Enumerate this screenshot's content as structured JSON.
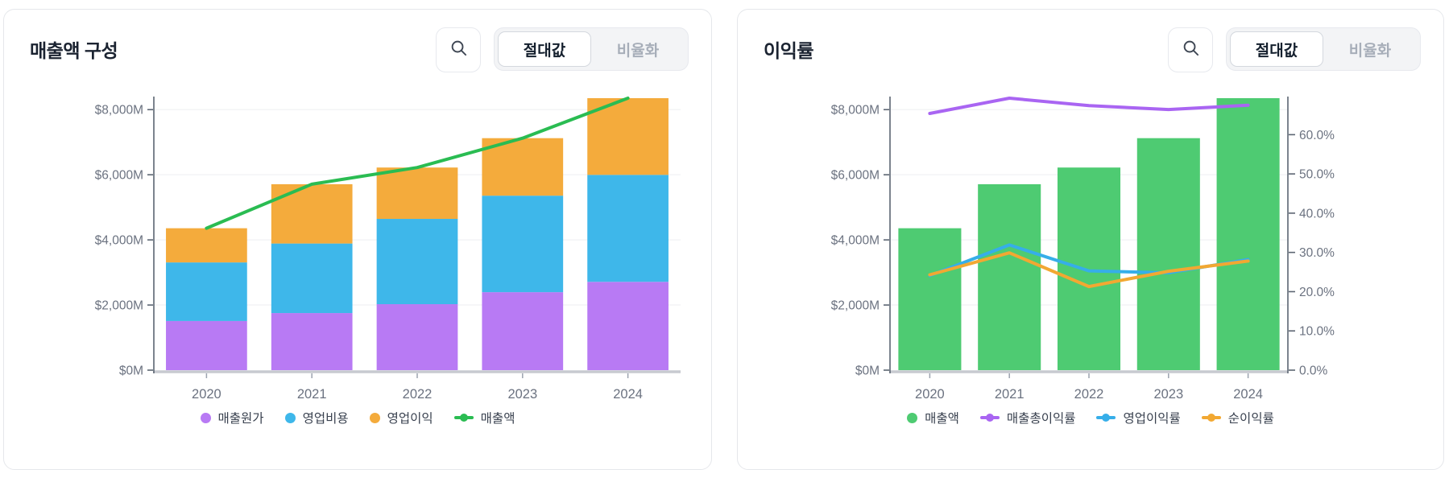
{
  "panels": [
    {
      "title": "매출액 구성",
      "controls": {
        "search_icon": "magnifier",
        "toggle": [
          {
            "label": "절대값",
            "active": true
          },
          {
            "label": "비율화",
            "active": false
          }
        ]
      },
      "legend": [
        {
          "label": "매출원가",
          "marker": "dot",
          "color": "#b87af4"
        },
        {
          "label": "영업비용",
          "marker": "dot",
          "color": "#3eb7ea"
        },
        {
          "label": "영업이익",
          "marker": "dot",
          "color": "#f4ab3c"
        },
        {
          "label": "매출액",
          "marker": "line-dot",
          "color": "#2abc52"
        }
      ]
    },
    {
      "title": "이익률",
      "controls": {
        "search_icon": "magnifier",
        "toggle": [
          {
            "label": "절대값",
            "active": true
          },
          {
            "label": "비율화",
            "active": false
          }
        ]
      },
      "legend": [
        {
          "label": "매출액",
          "marker": "dot",
          "color": "#4ecb72"
        },
        {
          "label": "매출총이익률",
          "marker": "line-dot",
          "color": "#a965f2"
        },
        {
          "label": "영업이익률",
          "marker": "line-dot",
          "color": "#36aee9"
        },
        {
          "label": "순이익률",
          "marker": "line-dot",
          "color": "#f2a832"
        }
      ]
    }
  ],
  "chart_data": [
    {
      "type": "bar",
      "stacked": true,
      "title": "매출액 구성",
      "categories": [
        "2020",
        "2021",
        "2022",
        "2023",
        "2024"
      ],
      "bar_series": [
        {
          "name": "매출원가",
          "color": "#b87af4",
          "values": [
            1509,
            1753,
            2026,
            2394,
            2712
          ]
        },
        {
          "name": "영업비용",
          "color": "#3eb7ea",
          "values": [
            1799,
            2136,
            2619,
            2964,
            3285
          ]
        },
        {
          "name": "영업이익",
          "color": "#f4ab3c",
          "values": [
            1050,
            1821,
            1577,
            1766,
            2355
          ]
        }
      ],
      "line_series": [
        {
          "name": "매출액",
          "color": "#2abc52",
          "axis": "left",
          "width": 4,
          "values": [
            4358,
            5710,
            6222,
            7124,
            8352
          ]
        }
      ],
      "y_left": {
        "min": 0,
        "max": 8352,
        "unit": "USD millions",
        "ticks": [
          0,
          2000,
          4000,
          6000,
          8000
        ],
        "tick_labels": [
          "$0M",
          "$2,000M",
          "$4,000M",
          "$6,000M",
          "$8,000M"
        ]
      },
      "grid": true,
      "legend_position": "bottom"
    },
    {
      "type": "bar",
      "stacked": false,
      "title": "이익률",
      "categories": [
        "2020",
        "2021",
        "2022",
        "2023",
        "2024"
      ],
      "bar_series": [
        {
          "name": "매출액",
          "color": "#4ecb72",
          "values": [
            4358,
            5710,
            6222,
            7124,
            8352
          ]
        }
      ],
      "line_series": [
        {
          "name": "매출총이익률",
          "color": "#a965f2",
          "axis": "right",
          "width": 4,
          "values": [
            65.4,
            69.3,
            67.4,
            66.4,
            67.5
          ]
        },
        {
          "name": "영업이익률",
          "color": "#36aee9",
          "axis": "right",
          "width": 4,
          "values": [
            24.1,
            31.9,
            25.3,
            24.8,
            28.2
          ]
        },
        {
          "name": "순이익률",
          "color": "#f2a832",
          "axis": "right",
          "width": 4,
          "values": [
            24.3,
            29.9,
            21.3,
            25.2,
            27.8
          ]
        }
      ],
      "y_left": {
        "min": 0,
        "max": 8352,
        "unit": "USD millions",
        "ticks": [
          0,
          2000,
          4000,
          6000,
          8000
        ],
        "tick_labels": [
          "$0M",
          "$2,000M",
          "$4,000M",
          "$6,000M",
          "$8,000M"
        ]
      },
      "y_right": {
        "min": 0,
        "max": 69.3,
        "unit": "percent",
        "ticks": [
          0,
          10,
          20,
          30,
          40,
          50,
          60
        ],
        "tick_labels": [
          "0.0%",
          "10.0%",
          "20.0%",
          "30.0%",
          "40.0%",
          "50.0%",
          "60.0%"
        ]
      },
      "grid": true,
      "legend_position": "bottom"
    }
  ],
  "colors": {
    "grid": "#f3f4f6",
    "axis_line": "#5c6572",
    "baseline": "#c7cad0",
    "tick_text": "#6b7280",
    "x_tick_mark": "#9ca3af"
  }
}
